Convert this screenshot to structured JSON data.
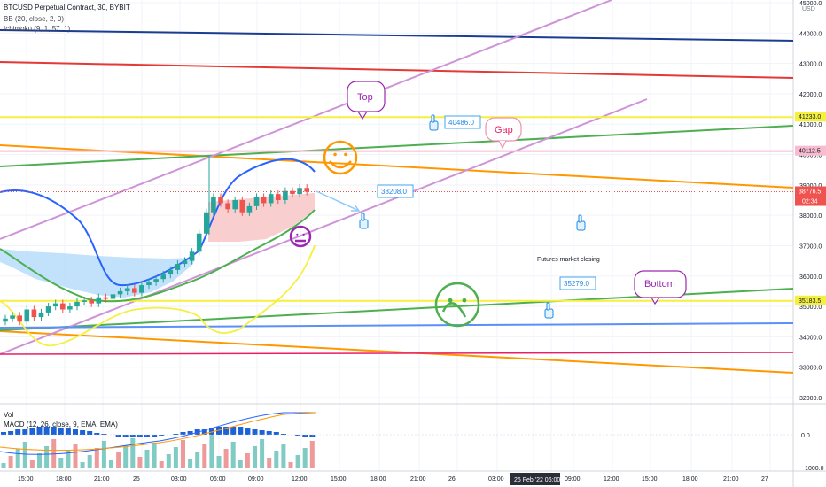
{
  "legend": {
    "symbol": "BTCUSD Perpetual Contract, 30, BYBIT",
    "bb": "BB (20, close, 2, 0)",
    "ichimoku": "Ichimoku (9, 1, 57, 1)",
    "vol": "Vol",
    "macd": "MACD (12, 26, close, 9, EMA, EMA)"
  },
  "price_axis": {
    "currency": "USD",
    "ticks": [
      "45000.0",
      "44000.0",
      "43000.0",
      "42000.0",
      "41000.0",
      "40000.0",
      "39000.0",
      "38000.0",
      "37000.0",
      "36000.0",
      "35000.0",
      "34000.0",
      "33000.0",
      "32000.0"
    ],
    "price_labels": [
      {
        "text": "41233.0",
        "kind": "yellow"
      },
      {
        "text": "40112.5",
        "kind": "pink"
      },
      {
        "text": "38776.5",
        "kind": "current",
        "sub": "02:34"
      },
      {
        "text": "35183.5",
        "kind": "yellow"
      }
    ]
  },
  "macd_axis": {
    "ticks": [
      "0.0",
      "−1000.0"
    ]
  },
  "time_axis": {
    "ticks": [
      "15:00",
      "18:00",
      "21:00",
      "25",
      "03:00",
      "06:00",
      "09:00",
      "12:00",
      "15:00",
      "18:00",
      "21:00",
      "26",
      "03:00",
      "26 Feb '22",
      "06:00",
      "09:00",
      "12:00",
      "15:00",
      "18:00",
      "21:00",
      "27"
    ],
    "highlight": "26 Feb '22   06:00"
  },
  "annotations": {
    "top_label": "Top",
    "gap_label": "Gap",
    "bottom_label": "Bottom",
    "price_note_1": "40486.0",
    "price_note_2": "38208.0",
    "price_note_3": "35279.0",
    "futures_note": "Futures market closing"
  },
  "colors": {
    "up": "#26a69a",
    "down": "#ef5350",
    "bb": "#2962ff",
    "ichimoku_cloud": "#bbdefb",
    "ichimoku_red": "#f8c5c5",
    "yellow": "#f5f040",
    "orange": "#ff9800",
    "pink": "#e91e63",
    "lavender": "#ce93d8",
    "green": "#4caf50",
    "navy": "#1a3d8f",
    "red": "#e53935",
    "steel": "#5b8ff9",
    "smiley_orange": "#ff9800",
    "smiley_purple": "#9c27b0",
    "smiley_green": "#4caf50"
  },
  "chart_data": {
    "type": "candlestick",
    "timeframe": "30",
    "symbol": "BTCUSD Perpetual Contract",
    "exchange": "BYBIT",
    "ylim": [
      32000,
      45000
    ],
    "current_price": 38776.5,
    "horizontal_levels": [
      41233.0,
      40112.5,
      35183.5
    ],
    "notes": [
      40486.0,
      38208.0,
      35279.0
    ],
    "close_series": [
      34600,
      34700,
      34500,
      34900,
      34650,
      34800,
      35000,
      35100,
      34900,
      35000,
      35150,
      35200,
      35100,
      35300,
      35250,
      35400,
      35500,
      35600,
      35450,
      35700,
      35800,
      35900,
      36050,
      36200,
      36400,
      36500,
      36800,
      37400,
      38100,
      38600,
      38400,
      38200,
      38500,
      38100,
      38300,
      38600,
      38400,
      38700,
      38500,
      38800,
      38700,
      38900,
      38776
    ]
  }
}
